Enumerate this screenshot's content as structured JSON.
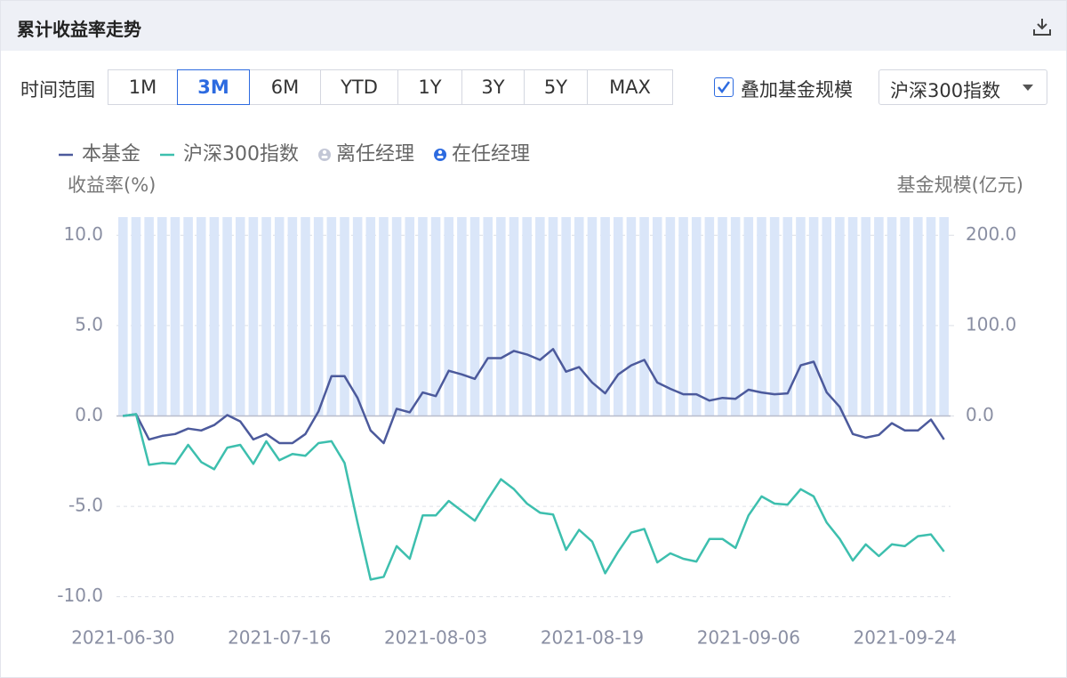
{
  "header": {
    "title": "累计收益率走势"
  },
  "controls": {
    "range_label": "时间范围",
    "range_buttons": [
      "1M",
      "3M",
      "6M",
      "YTD",
      "1Y",
      "3Y",
      "5Y",
      "MAX"
    ],
    "active_index": 1,
    "overlay_checkbox": {
      "label": "叠加基金规模",
      "checked": true
    },
    "benchmark_select": "沪深300指数"
  },
  "chart_data": {
    "type": "line",
    "ylabel": "收益率(%)",
    "y2label": "基金规模(亿元)",
    "categories": [
      "2021-06-30",
      null,
      null,
      null,
      null,
      null,
      null,
      null,
      null,
      null,
      null,
      null,
      "2021-07-16",
      null,
      null,
      null,
      null,
      null,
      null,
      null,
      null,
      null,
      null,
      null,
      "2021-08-03",
      null,
      null,
      null,
      null,
      null,
      null,
      null,
      null,
      null,
      null,
      null,
      "2021-08-19",
      null,
      null,
      null,
      null,
      null,
      null,
      null,
      null,
      null,
      null,
      null,
      "2021-09-06",
      null,
      null,
      null,
      null,
      null,
      null,
      null,
      null,
      null,
      null,
      null,
      "2021-09-24",
      null,
      null,
      null
    ],
    "series": [
      {
        "name": "本基金",
        "color": "#4c5a9c",
        "values": [
          0,
          0.1,
          -1.3,
          -1.1,
          -1.0,
          -0.7,
          -0.8,
          -0.5,
          0.05,
          -0.3,
          -1.3,
          -1.0,
          -1.5,
          -1.5,
          -1.0,
          0.25,
          2.2,
          2.2,
          1.0,
          -0.8,
          -1.5,
          0.4,
          0.2,
          1.3,
          1.1,
          2.5,
          2.3,
          2.05,
          3.2,
          3.2,
          3.6,
          3.4,
          3.1,
          3.7,
          2.45,
          2.7,
          1.85,
          1.25,
          2.3,
          2.8,
          3.1,
          1.85,
          1.5,
          1.2,
          1.2,
          0.85,
          1.0,
          0.95,
          1.45,
          1.3,
          1.2,
          1.25,
          2.8,
          3.0,
          1.3,
          0.5,
          -1.0,
          -1.2,
          -1.05,
          -0.4,
          -0.8,
          -0.8,
          -0.2,
          -1.3
        ]
      },
      {
        "name": "沪深300指数",
        "color": "#3dbfae",
        "values": [
          0,
          0.1,
          -2.7,
          -2.6,
          -2.65,
          -1.6,
          -2.55,
          -2.95,
          -1.75,
          -1.6,
          -2.65,
          -1.4,
          -2.45,
          -2.1,
          -2.2,
          -1.5,
          -1.4,
          -2.6,
          -5.9,
          -9.05,
          -8.9,
          -7.2,
          -7.9,
          -5.5,
          -5.5,
          -4.7,
          -5.25,
          -5.8,
          -4.6,
          -3.5,
          -4.05,
          -4.85,
          -5.35,
          -5.45,
          -7.4,
          -6.3,
          -6.95,
          -8.7,
          -7.5,
          -6.45,
          -6.25,
          -8.1,
          -7.6,
          -7.9,
          -8.05,
          -6.8,
          -6.8,
          -7.3,
          -5.5,
          -4.45,
          -4.85,
          -4.9,
          -4.05,
          -4.45,
          -5.9,
          -6.8,
          -8.0,
          -7.1,
          -7.75,
          -7.1,
          -7.2,
          -6.65,
          -6.55,
          -7.5
        ]
      }
    ],
    "size_bars": {
      "axis": "y2",
      "color": "#dae6f9",
      "values": [
        220,
        220,
        220,
        220,
        220,
        220,
        220,
        220,
        220,
        220,
        220,
        220,
        220,
        220,
        220,
        220,
        220,
        220,
        220,
        220,
        220,
        220,
        220,
        220,
        220,
        220,
        220,
        220,
        220,
        220,
        220,
        220,
        220,
        220,
        220,
        220,
        220,
        220,
        220,
        220,
        220,
        220,
        220,
        220,
        220,
        220,
        220,
        220,
        220,
        220,
        220,
        220,
        220,
        220,
        220,
        220,
        220,
        220,
        220,
        220,
        220,
        220,
        220,
        220
      ]
    },
    "manager_markers": [
      {
        "name": "离任经理",
        "color": "#c3c7d6"
      },
      {
        "name": "在任经理",
        "color": "#2d6be0"
      }
    ],
    "ylim": [
      -11,
      11
    ],
    "yticks": [
      {
        "value": -10,
        "label": "-10.0"
      },
      {
        "value": -5,
        "label": "-5.0"
      },
      {
        "value": 0,
        "label": "0.0"
      },
      {
        "value": 5,
        "label": "5.0"
      },
      {
        "value": 10,
        "label": "10.0"
      }
    ],
    "y2lim": [
      -220,
      220
    ],
    "y2ticks": [
      {
        "value": 0,
        "label": "0.0"
      },
      {
        "value": 100,
        "label": "100.0"
      },
      {
        "value": 200,
        "label": "200.0"
      }
    ],
    "grid": true
  }
}
